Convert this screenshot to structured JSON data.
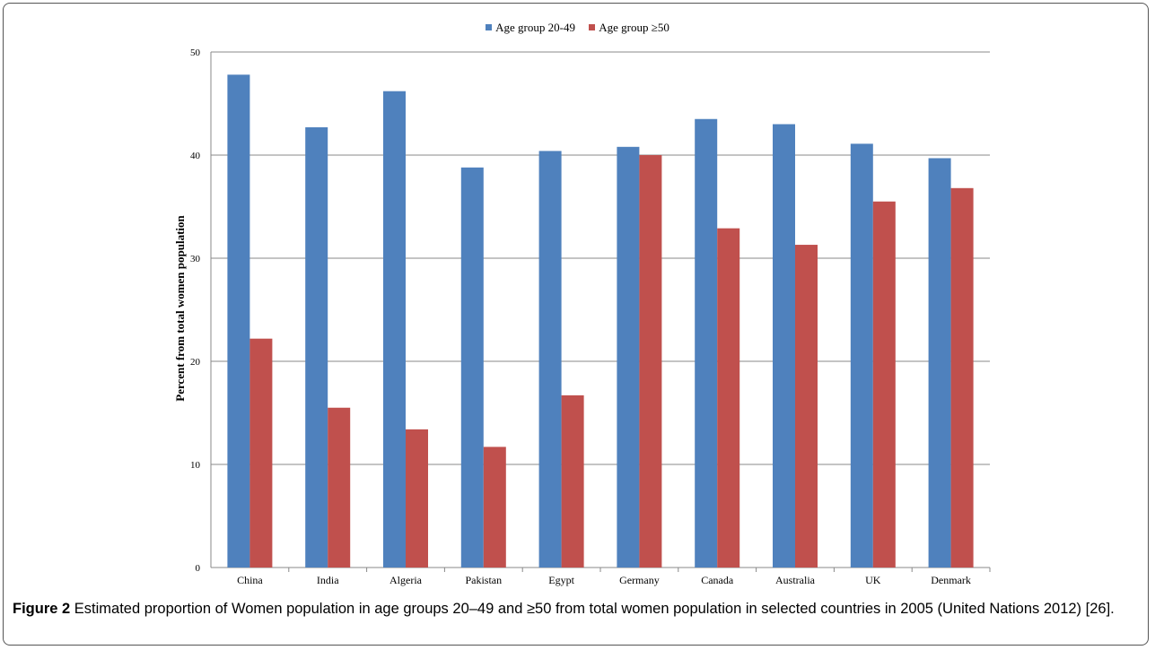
{
  "caption": {
    "label": "Figure 2",
    "text": " Estimated proportion of Women population in age groups 20–49 and ≥50 from total women population in selected countries in 2005 (United Nations 2012) [26]."
  },
  "chart_data": {
    "type": "bar",
    "ylabel": "Percent from total women population",
    "xlabel": "",
    "ylim": [
      0,
      50
    ],
    "yticks": [
      0,
      10,
      20,
      30,
      40,
      50
    ],
    "grid": true,
    "legend_position": "top",
    "categories": [
      "China",
      "India",
      "Algeria",
      "Pakistan",
      "Egypt",
      "Germany",
      "Canada",
      "Australia",
      "UK",
      "Denmark"
    ],
    "series": [
      {
        "name": "Age group 20-49",
        "color": "#4f81bd",
        "values": [
          47.8,
          42.7,
          46.2,
          38.8,
          40.4,
          40.8,
          43.5,
          43.0,
          41.1,
          39.7
        ]
      },
      {
        "name": "Age group ≥50",
        "color": "#c0504d",
        "values": [
          22.2,
          15.5,
          13.4,
          11.7,
          16.7,
          40.0,
          32.9,
          31.3,
          35.5,
          36.8
        ]
      }
    ]
  }
}
